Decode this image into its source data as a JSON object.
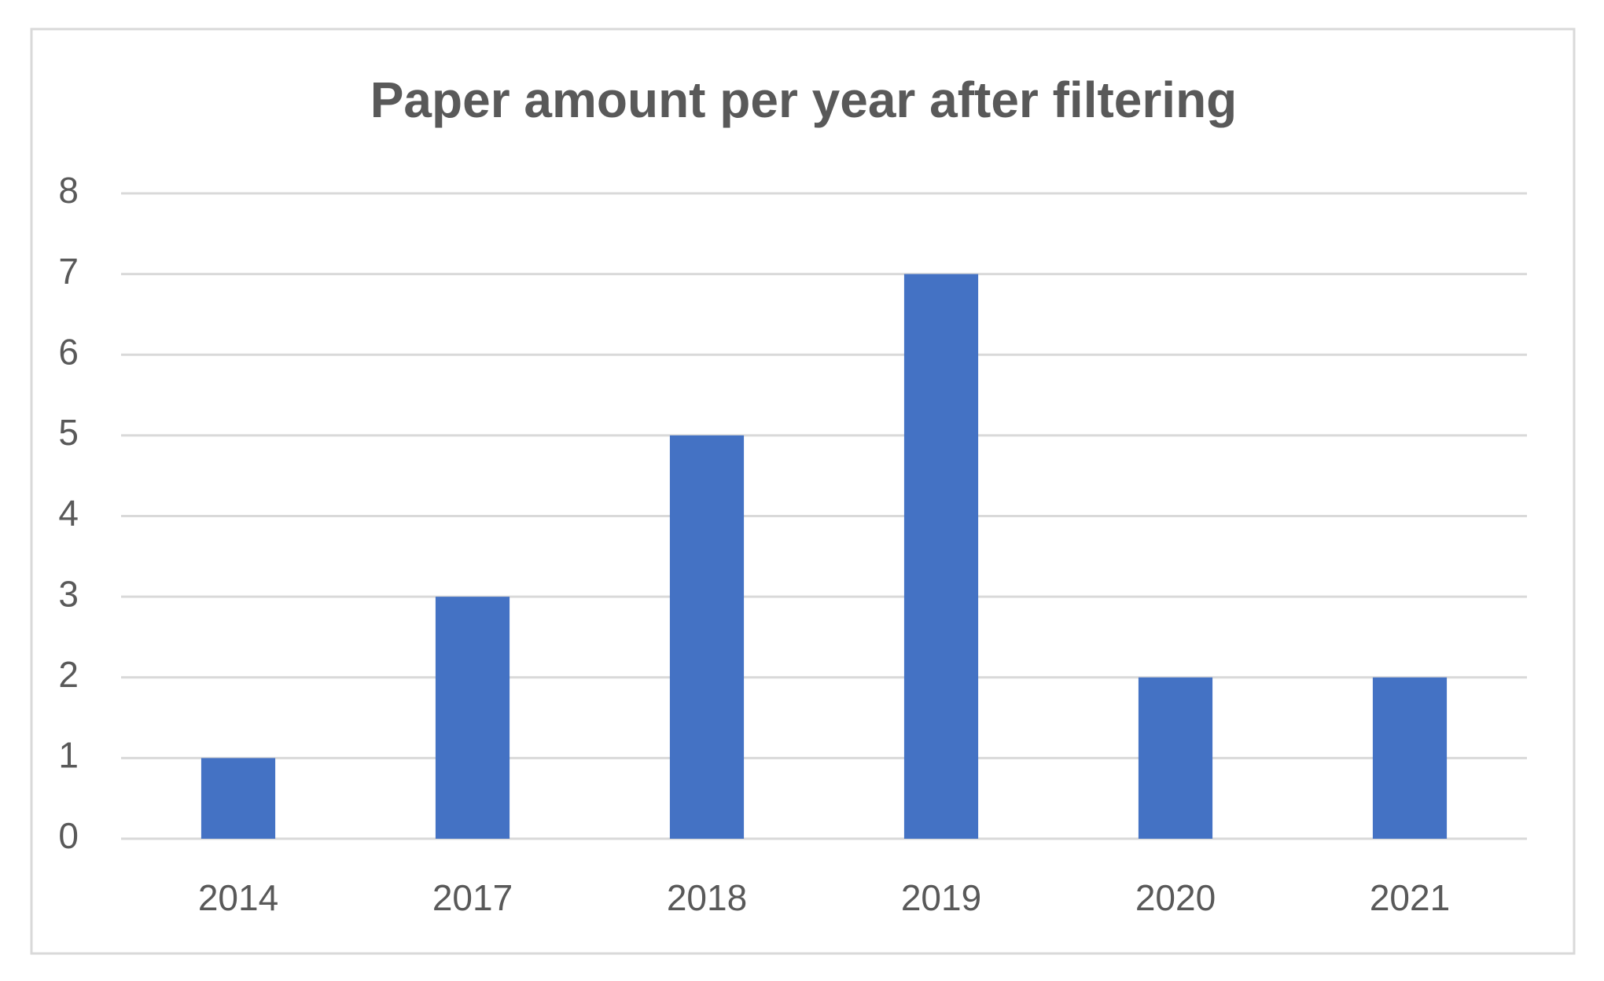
{
  "chart_data": {
    "type": "bar",
    "title": "Paper amount per year after filtering",
    "categories": [
      "2014",
      "2017",
      "2018",
      "2019",
      "2020",
      "2021"
    ],
    "values": [
      1,
      3,
      5,
      7,
      2,
      2
    ],
    "color": "#4472c4",
    "ylim": [
      0,
      8
    ],
    "yticks": [
      0,
      1,
      2,
      3,
      4,
      5,
      6,
      7,
      8
    ],
    "grid": true
  }
}
